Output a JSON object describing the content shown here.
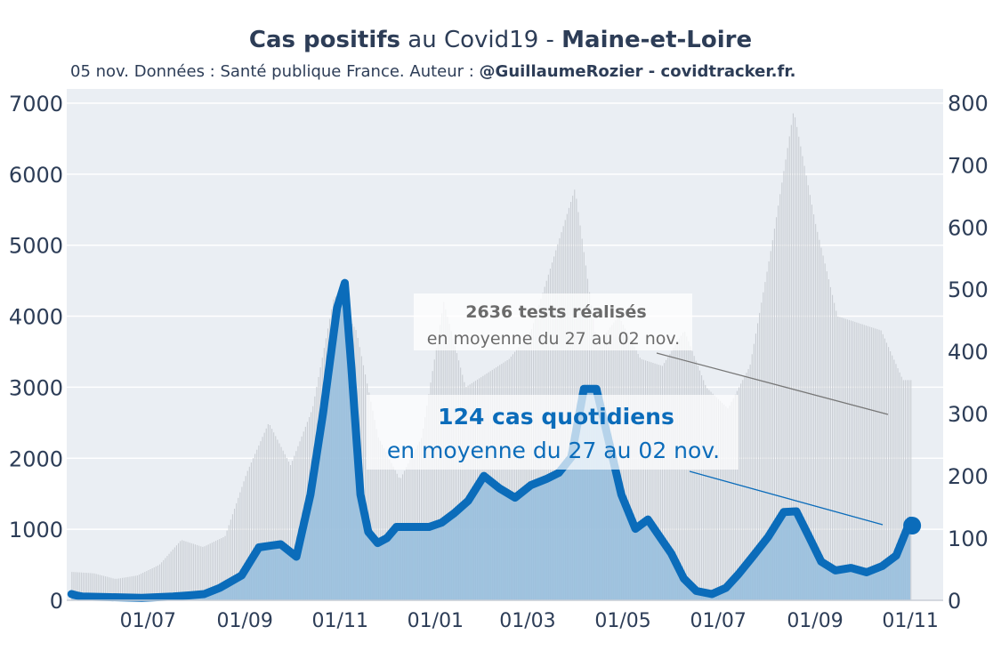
{
  "title": {
    "bold_part_1": "Cas positifs",
    "middle": " au Covid19 - ",
    "bold_part_2": "Maine-et-Loire"
  },
  "subtitle": {
    "prefix": "05 nov. Données : Santé publique France. Auteur : ",
    "bold": "@GuillaumeRozier - covidtracker.fr."
  },
  "colors": {
    "plot_bg": "#eaeef3",
    "cases_line": "#0b6cba",
    "cases_fill": "#95bddd",
    "tests_bars": "#c9cdd3",
    "axis_text": "#2d3d57",
    "tests_annotation": "#6b6b6b"
  },
  "chart_data": {
    "type": "line",
    "x_tick_labels": [
      "01/07",
      "01/09",
      "01/11",
      "01/01",
      "01/03",
      "01/05",
      "01/07",
      "01/09",
      "01/11"
    ],
    "y_left": {
      "ticks": [
        0,
        1000,
        2000,
        3000,
        4000,
        5000,
        6000,
        7000
      ],
      "range": [
        0,
        7200
      ]
    },
    "y_right": {
      "ticks": [
        0,
        100,
        200,
        300,
        400,
        500,
        600,
        700,
        800
      ],
      "range": [
        0,
        822
      ]
    },
    "grid": true,
    "series": [
      {
        "axis": "left",
        "style": "bars",
        "x": [
          "2020-05-13",
          "2020-05-27",
          "2020-06-10",
          "2020-06-24",
          "2020-07-08",
          "2020-07-22",
          "2020-08-05",
          "2020-08-19",
          "2020-09-02",
          "2020-09-16",
          "2020-09-30",
          "2020-10-14",
          "2020-10-28",
          "2020-11-11",
          "2020-11-25",
          "2020-12-09",
          "2020-12-23",
          "2021-01-06",
          "2021-01-20",
          "2021-02-03",
          "2021-02-17",
          "2021-03-03",
          "2021-03-17",
          "2021-03-31",
          "2021-04-14",
          "2021-04-28",
          "2021-05-12",
          "2021-05-26",
          "2021-06-09",
          "2021-06-23",
          "2021-07-07",
          "2021-07-21",
          "2021-08-04",
          "2021-08-18",
          "2021-09-01",
          "2021-09-15",
          "2021-09-29",
          "2021-10-13",
          "2021-10-27",
          "2021-11-02"
        ],
        "values": [
          400,
          380,
          300,
          350,
          500,
          850,
          750,
          900,
          1800,
          2500,
          1900,
          2700,
          4300,
          3800,
          2300,
          1700,
          2300,
          4200,
          3000,
          3200,
          3400,
          3800,
          4800,
          5800,
          3600,
          4000,
          3400,
          3300,
          3800,
          3000,
          2700,
          3300,
          5000,
          6900,
          5300,
          4000,
          3900,
          3800,
          3100,
          3100
        ]
      },
      {
        "axis": "right",
        "style": "line-area",
        "x": [
          "2020-05-13",
          "2020-05-16",
          "2020-05-20",
          "2020-06-07",
          "2020-06-27",
          "2020-07-17",
          "2020-07-28",
          "2020-08-06",
          "2020-08-16",
          "2020-08-30",
          "2020-09-10",
          "2020-09-18",
          "2020-09-24",
          "2020-10-04",
          "2020-10-13",
          "2020-10-21",
          "2020-10-30",
          "2020-11-04",
          "2020-11-08",
          "2020-11-14",
          "2020-11-19",
          "2020-11-25",
          "2020-12-01",
          "2020-12-07",
          "2020-12-12",
          "2020-12-20",
          "2020-12-28",
          "2021-01-05",
          "2021-01-13",
          "2021-01-22",
          "2021-02-01",
          "2021-02-11",
          "2021-02-21",
          "2021-03-03",
          "2021-03-13",
          "2021-03-21",
          "2021-03-29",
          "2021-04-06",
          "2021-04-14",
          "2021-04-22",
          "2021-04-30",
          "2021-05-09",
          "2021-05-17",
          "2021-05-23",
          "2021-06-01",
          "2021-06-09",
          "2021-06-17",
          "2021-06-27",
          "2021-07-06",
          "2021-07-14",
          "2021-07-23",
          "2021-08-02",
          "2021-08-12",
          "2021-08-20",
          "2021-08-28",
          "2021-09-05",
          "2021-09-14",
          "2021-09-24",
          "2021-10-04",
          "2021-10-14",
          "2021-10-23",
          "2021-11-01"
        ],
        "values": [
          10,
          8,
          6,
          5,
          4,
          6,
          8,
          10,
          20,
          40,
          85,
          88,
          90,
          70,
          170,
          300,
          470,
          510,
          380,
          170,
          110,
          92,
          100,
          118,
          118,
          118,
          118,
          125,
          140,
          160,
          200,
          180,
          165,
          185,
          195,
          205,
          230,
          340,
          340,
          255,
          170,
          115,
          130,
          108,
          75,
          35,
          15,
          10,
          20,
          42,
          70,
          102,
          142,
          143,
          103,
          62,
          48,
          52,
          45,
          55,
          72,
          128
        ]
      }
    ],
    "annotations": [
      {
        "bold": "2636 tests réalisés",
        "text": "en moyenne du 27 au 02 nov."
      },
      {
        "bold": "124 cas quotidiens",
        "text": "en moyenne du 27 au 02 nov."
      }
    ]
  }
}
